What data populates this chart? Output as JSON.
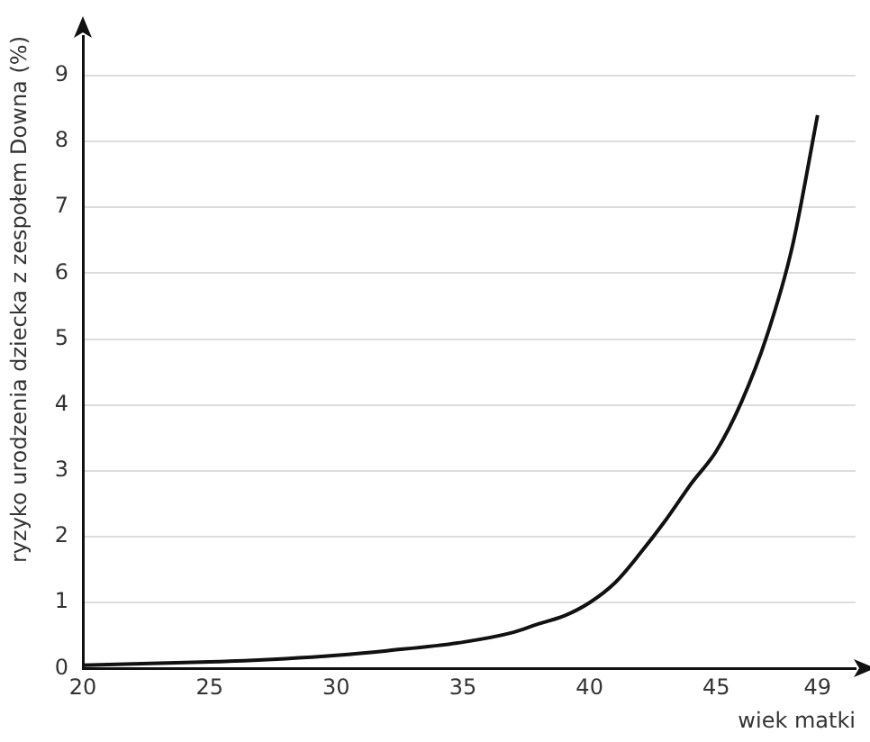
{
  "chart_data": {
    "type": "line",
    "xlabel": "wiek matki",
    "ylabel": "ryzyko urodzenia dziecka z zespołem Downa (%)",
    "x": [
      20,
      22,
      25,
      28,
      30,
      32,
      35,
      37,
      38,
      39,
      40,
      41,
      42,
      43,
      44,
      45,
      46,
      47,
      48,
      49
    ],
    "series": [
      {
        "color": "#111111",
        "values": [
          0.05,
          0.07,
          0.1,
          0.15,
          0.2,
          0.27,
          0.4,
          0.55,
          0.68,
          0.8,
          1.0,
          1.3,
          1.75,
          2.25,
          2.8,
          3.3,
          4.05,
          5.05,
          6.4,
          8.4
        ]
      }
    ],
    "xlim": [
      20,
      50.5
    ],
    "xticks": [
      20,
      25,
      30,
      35,
      40,
      45,
      49
    ],
    "ylim": [
      0,
      9.6
    ],
    "yticks": [
      0,
      1,
      2,
      3,
      4,
      5,
      6,
      7,
      8,
      9
    ],
    "grid": "y",
    "marker": "none",
    "line_style": "solid",
    "legend": false
  }
}
